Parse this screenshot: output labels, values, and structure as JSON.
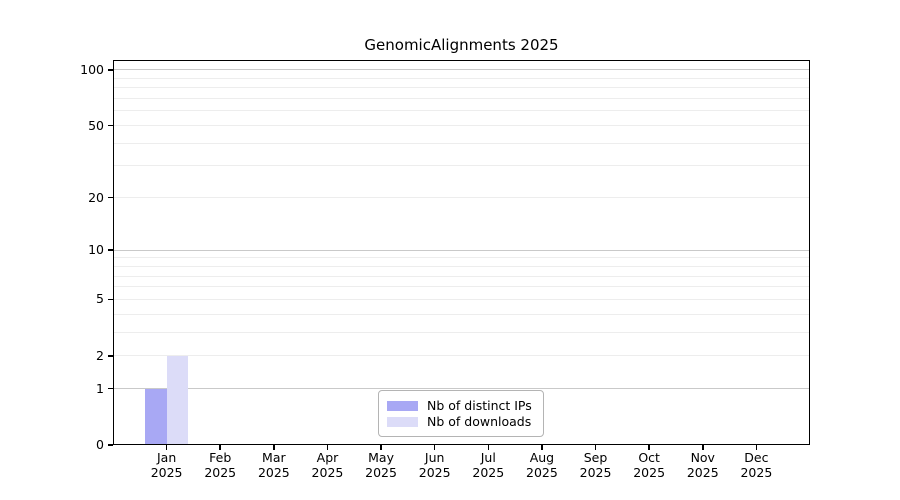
{
  "chart_data": {
    "type": "bar",
    "title": "GenomicAlignments 2025",
    "x_tick_months": [
      "Jan",
      "Feb",
      "Mar",
      "Apr",
      "May",
      "Jun",
      "Jul",
      "Aug",
      "Sep",
      "Oct",
      "Nov",
      "Dec"
    ],
    "x_tick_year": "2025",
    "series": [
      {
        "name": "Nb of distinct IPs",
        "color": "#a8a8f4",
        "values": [
          1,
          0,
          0,
          0,
          0,
          0,
          0,
          0,
          0,
          0,
          0,
          0
        ]
      },
      {
        "name": "Nb of downloads",
        "color": "#dcdcf8",
        "values": [
          2,
          0,
          0,
          0,
          0,
          0,
          0,
          0,
          0,
          0,
          0,
          0
        ]
      }
    ],
    "y_scale": "log1p",
    "ylim": [
      0,
      113
    ],
    "y_tick_values": [
      0,
      1,
      2,
      5,
      10,
      20,
      50,
      100
    ],
    "y_major_grid_values": [
      1,
      10,
      100
    ],
    "y_minor_grid_values": [
      2,
      3,
      4,
      5,
      6,
      7,
      8,
      9,
      20,
      30,
      40,
      50,
      60,
      70,
      80,
      90
    ],
    "grid": "horizontal",
    "legend_position": "bottom-center",
    "colors": {
      "major_grid": "#c9c9c9",
      "minor_grid": "#ededed",
      "axis": "#000000",
      "background": "#ffffff"
    }
  }
}
